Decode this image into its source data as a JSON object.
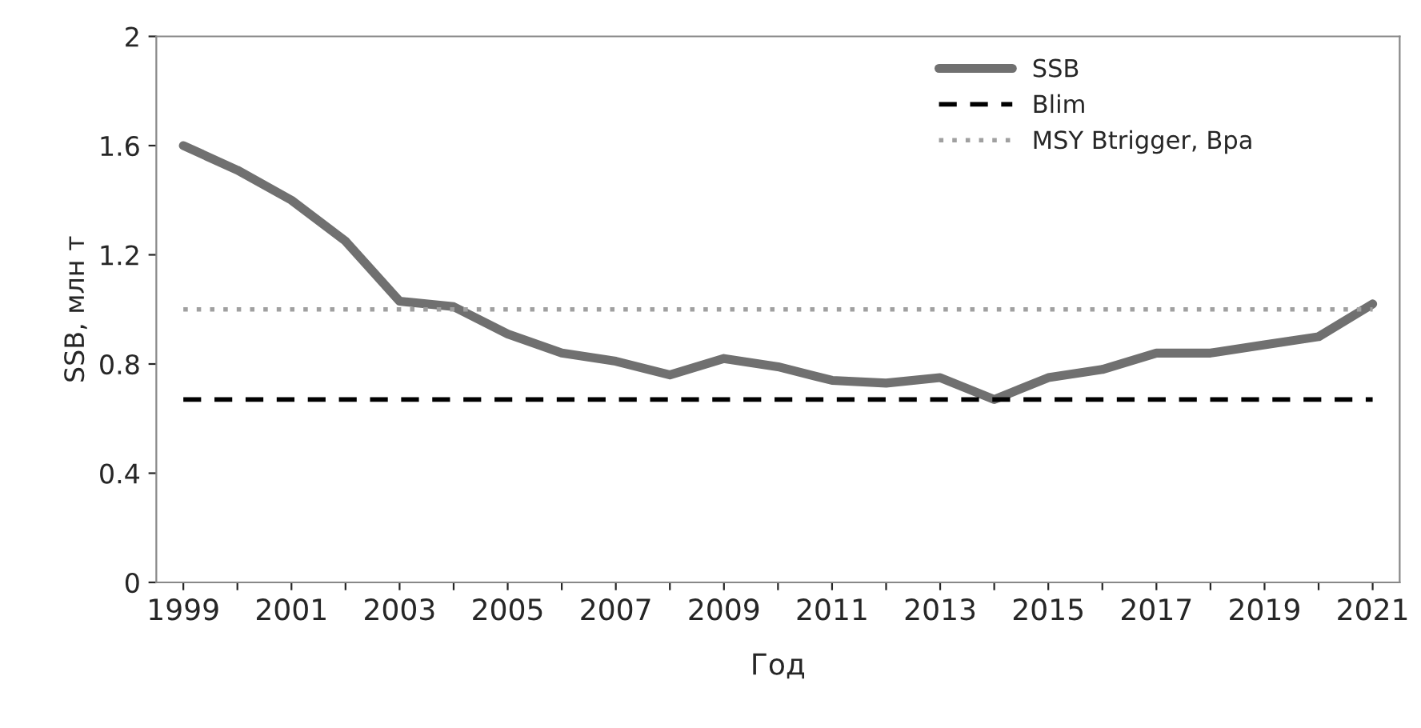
{
  "chart_data": {
    "type": "line",
    "xlabel": "Год",
    "ylabel": "SSB, млн т",
    "categories": [
      "1999",
      null,
      "2001",
      null,
      "2003",
      null,
      "2005",
      null,
      "2007",
      null,
      "2009",
      null,
      "2011",
      null,
      "2013",
      null,
      "2015",
      null,
      "2017",
      null,
      "2019",
      null,
      "2021"
    ],
    "series": [
      {
        "name": "SSB",
        "color": "#707070",
        "line_style": "solid",
        "values": [
          1.6,
          1.51,
          1.4,
          1.25,
          1.03,
          1.01,
          0.91,
          0.84,
          0.81,
          0.76,
          0.82,
          0.79,
          0.74,
          0.73,
          0.75,
          0.67,
          0.75,
          0.78,
          0.84,
          0.84,
          0.87,
          0.9,
          1.02
        ]
      },
      {
        "name": "Blim",
        "color": "#000000",
        "line_style": "dashed",
        "values": [
          0.67,
          0.67,
          0.67,
          0.67,
          0.67,
          0.67,
          0.67,
          0.67,
          0.67,
          0.67,
          0.67,
          0.67,
          0.67,
          0.67,
          0.67,
          0.67,
          0.67,
          0.67,
          0.67,
          0.67,
          0.67,
          0.67,
          0.67
        ]
      },
      {
        "name": "MSY Btrigger, Bpa",
        "color": "#a0a0a0",
        "line_style": "dotted",
        "values": [
          1.0,
          1.0,
          1.0,
          1.0,
          1.0,
          1.0,
          1.0,
          1.0,
          1.0,
          1.0,
          1.0,
          1.0,
          1.0,
          1.0,
          1.0,
          1.0,
          1.0,
          1.0,
          1.0,
          1.0,
          1.0,
          1.0,
          1.0
        ]
      }
    ],
    "ylim": [
      0,
      2
    ],
    "yticks": [
      0,
      0.4,
      0.8,
      1.2,
      1.6,
      2
    ],
    "grid": false,
    "legend": "top right",
    "marker": "none"
  }
}
